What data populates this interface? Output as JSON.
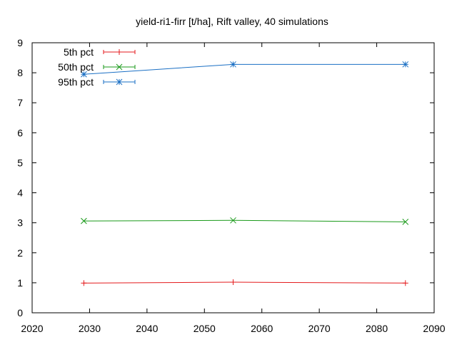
{
  "chart_data": {
    "type": "line",
    "title": "yield-ri1-firr [t/ha], Rift valley, 40 simulations",
    "xlabel": "",
    "ylabel": "",
    "xlim": [
      2020,
      2090
    ],
    "ylim": [
      0,
      9
    ],
    "x_ticks": [
      2020,
      2030,
      2040,
      2050,
      2060,
      2070,
      2080,
      2090
    ],
    "y_ticks": [
      0,
      1,
      2,
      3,
      4,
      5,
      6,
      7,
      8,
      9
    ],
    "grid": false,
    "legend_position": "top-left",
    "series": [
      {
        "name": "5th pct",
        "color": "#e41a1c",
        "marker": "plus",
        "x": [
          2029,
          2055,
          2085
        ],
        "y": [
          0.99,
          1.02,
          0.99
        ]
      },
      {
        "name": "50th pct",
        "color": "#1a9a1a",
        "marker": "cross",
        "x": [
          2029,
          2055,
          2085
        ],
        "y": [
          3.06,
          3.08,
          3.03
        ]
      },
      {
        "name": "95th pct",
        "color": "#1a6fc4",
        "marker": "star",
        "x": [
          2029,
          2055,
          2085
        ],
        "y": [
          7.95,
          8.28,
          8.28
        ]
      }
    ]
  }
}
